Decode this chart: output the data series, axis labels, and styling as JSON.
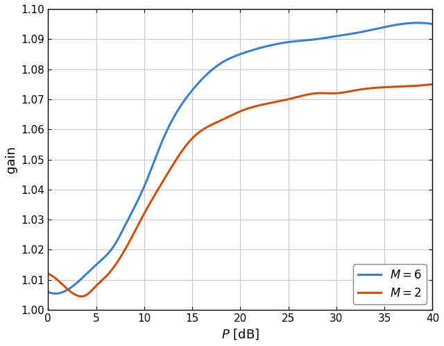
{
  "title": "",
  "xlabel": "$P$ [dB]",
  "ylabel": "gain",
  "xlim": [
    0,
    40
  ],
  "ylim": [
    1.0,
    1.1
  ],
  "xticks": [
    0,
    5,
    10,
    15,
    20,
    25,
    30,
    35,
    40
  ],
  "yticks": [
    1.0,
    1.01,
    1.02,
    1.03,
    1.04,
    1.05,
    1.06,
    1.07,
    1.08,
    1.09,
    1.1
  ],
  "x_M6_ctrl": [
    0,
    3,
    5,
    7,
    8,
    10,
    12,
    15,
    18,
    20,
    22,
    25,
    28,
    30,
    32,
    35,
    40
  ],
  "y_M6_ctrl": [
    1.006,
    1.009,
    1.015,
    1.022,
    1.028,
    1.041,
    1.057,
    1.073,
    1.082,
    1.085,
    1.087,
    1.089,
    1.09,
    1.091,
    1.092,
    1.094,
    1.095
  ],
  "x_M2_ctrl": [
    0,
    2,
    4,
    5,
    6,
    8,
    10,
    12,
    15,
    18,
    20,
    22,
    25,
    28,
    30,
    32,
    35,
    40
  ],
  "y_M2_ctrl": [
    1.012,
    1.007,
    1.005,
    1.008,
    1.011,
    1.02,
    1.032,
    1.043,
    1.057,
    1.063,
    1.066,
    1.068,
    1.07,
    1.072,
    1.072,
    1.073,
    1.074,
    1.075
  ],
  "color_M6": "#3b7fc4",
  "color_M2": "#c9510c",
  "linewidth": 2.2,
  "legend_labels": [
    "$M = 6$",
    "$M = 2$"
  ],
  "grid_color": "#c8c8c8",
  "background_color": "#ffffff",
  "legend_loc": "lower right",
  "legend_fontsize": 12
}
